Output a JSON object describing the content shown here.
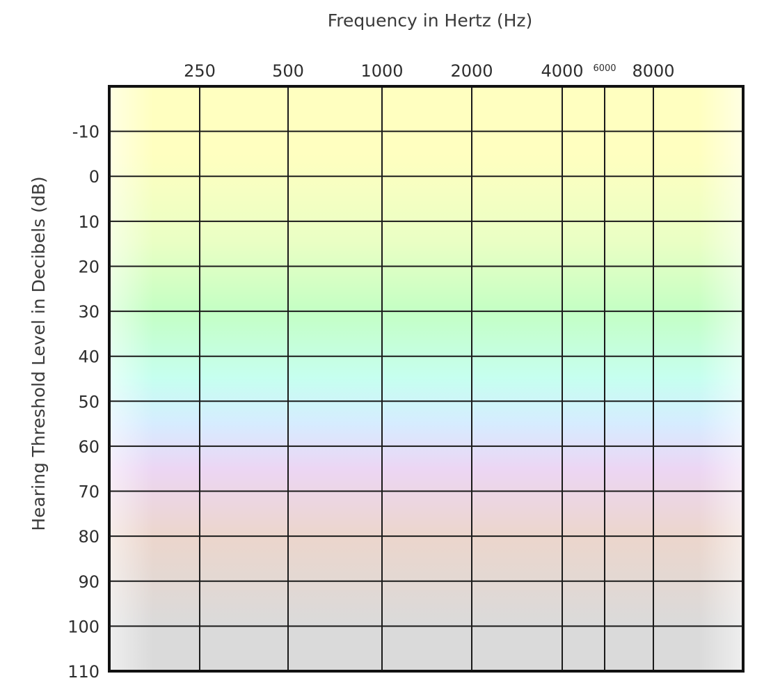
{
  "chart_data": {
    "type": "line",
    "xlabel": "Frequency in Hertz (Hz)",
    "ylabel": "Hearing Threshold Level in Decibels (dB)",
    "x_ticks": [
      "250",
      "500",
      "1000",
      "2000",
      "4000",
      "6000",
      "8000"
    ],
    "x_tick_small": [
      false,
      false,
      false,
      false,
      false,
      true,
      false
    ],
    "y_ticks": [
      -10,
      0,
      10,
      20,
      30,
      40,
      50,
      60,
      70,
      80,
      90,
      100,
      110
    ],
    "ylim": [
      -20,
      110
    ],
    "y_inverted": true,
    "grid": true,
    "series": [],
    "background_bands": [
      {
        "from": -20,
        "to": 10,
        "color": "#ffffc0"
      },
      {
        "from": 10,
        "to": 20,
        "color": "#e9ffc4"
      },
      {
        "from": 20,
        "to": 40,
        "color": "#c4ffc4"
      },
      {
        "from": 40,
        "to": 50,
        "color": "#c6fff0"
      },
      {
        "from": 50,
        "to": 60,
        "color": "#d6ecff"
      },
      {
        "from": 60,
        "to": 70,
        "color": "#ecd6f4"
      },
      {
        "from": 70,
        "to": 90,
        "color": "#ecd6cc"
      },
      {
        "from": 90,
        "to": 110,
        "color": "#dadada"
      }
    ]
  }
}
